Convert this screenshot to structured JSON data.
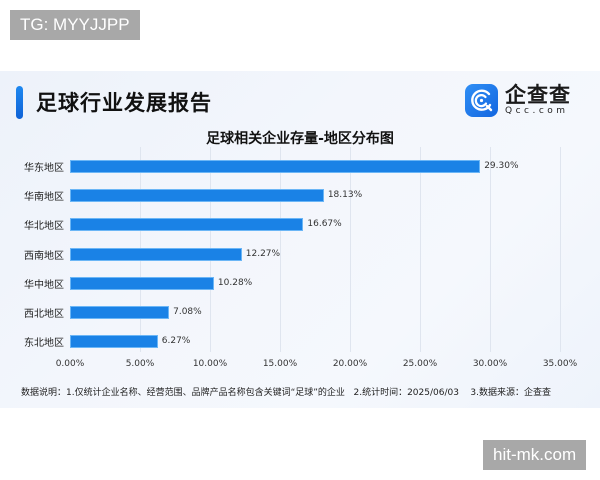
{
  "watermarks": {
    "top": "TG: MYYJJPP",
    "bottom": "hit-mk.com"
  },
  "header": {
    "title": "足球行业发展报告",
    "logo": {
      "cn": "企查查",
      "en": "Qcc.com",
      "icon": "qcc-logo-icon"
    }
  },
  "colors": {
    "bar": "#1a82e6",
    "accent": "#1e88f0"
  },
  "footnote": "数据说明：1.仅统计企业名称、经营范围、品牌产品名称包含关键词“足球”的企业   2.统计时间：2025/06/03    3.数据来源：企查查",
  "chart_data": {
    "type": "bar",
    "orientation": "horizontal",
    "title": "足球相关企业存量-地区分布图",
    "categories": [
      "华东地区",
      "华南地区",
      "华北地区",
      "西南地区",
      "华中地区",
      "西北地区",
      "东北地区"
    ],
    "values": [
      29.3,
      18.13,
      16.67,
      12.27,
      10.28,
      7.08,
      6.27
    ],
    "value_labels": [
      "29.30%",
      "18.13%",
      "16.67%",
      "12.27%",
      "10.28%",
      "7.08%",
      "6.27%"
    ],
    "xlabel": "",
    "ylabel": "",
    "xlim": [
      0,
      35
    ],
    "xticks": [
      "0.00%",
      "5.00%",
      "10.00%",
      "15.00%",
      "20.00%",
      "25.00%",
      "30.00%",
      "35.00%"
    ],
    "grid": true,
    "legend": null
  }
}
